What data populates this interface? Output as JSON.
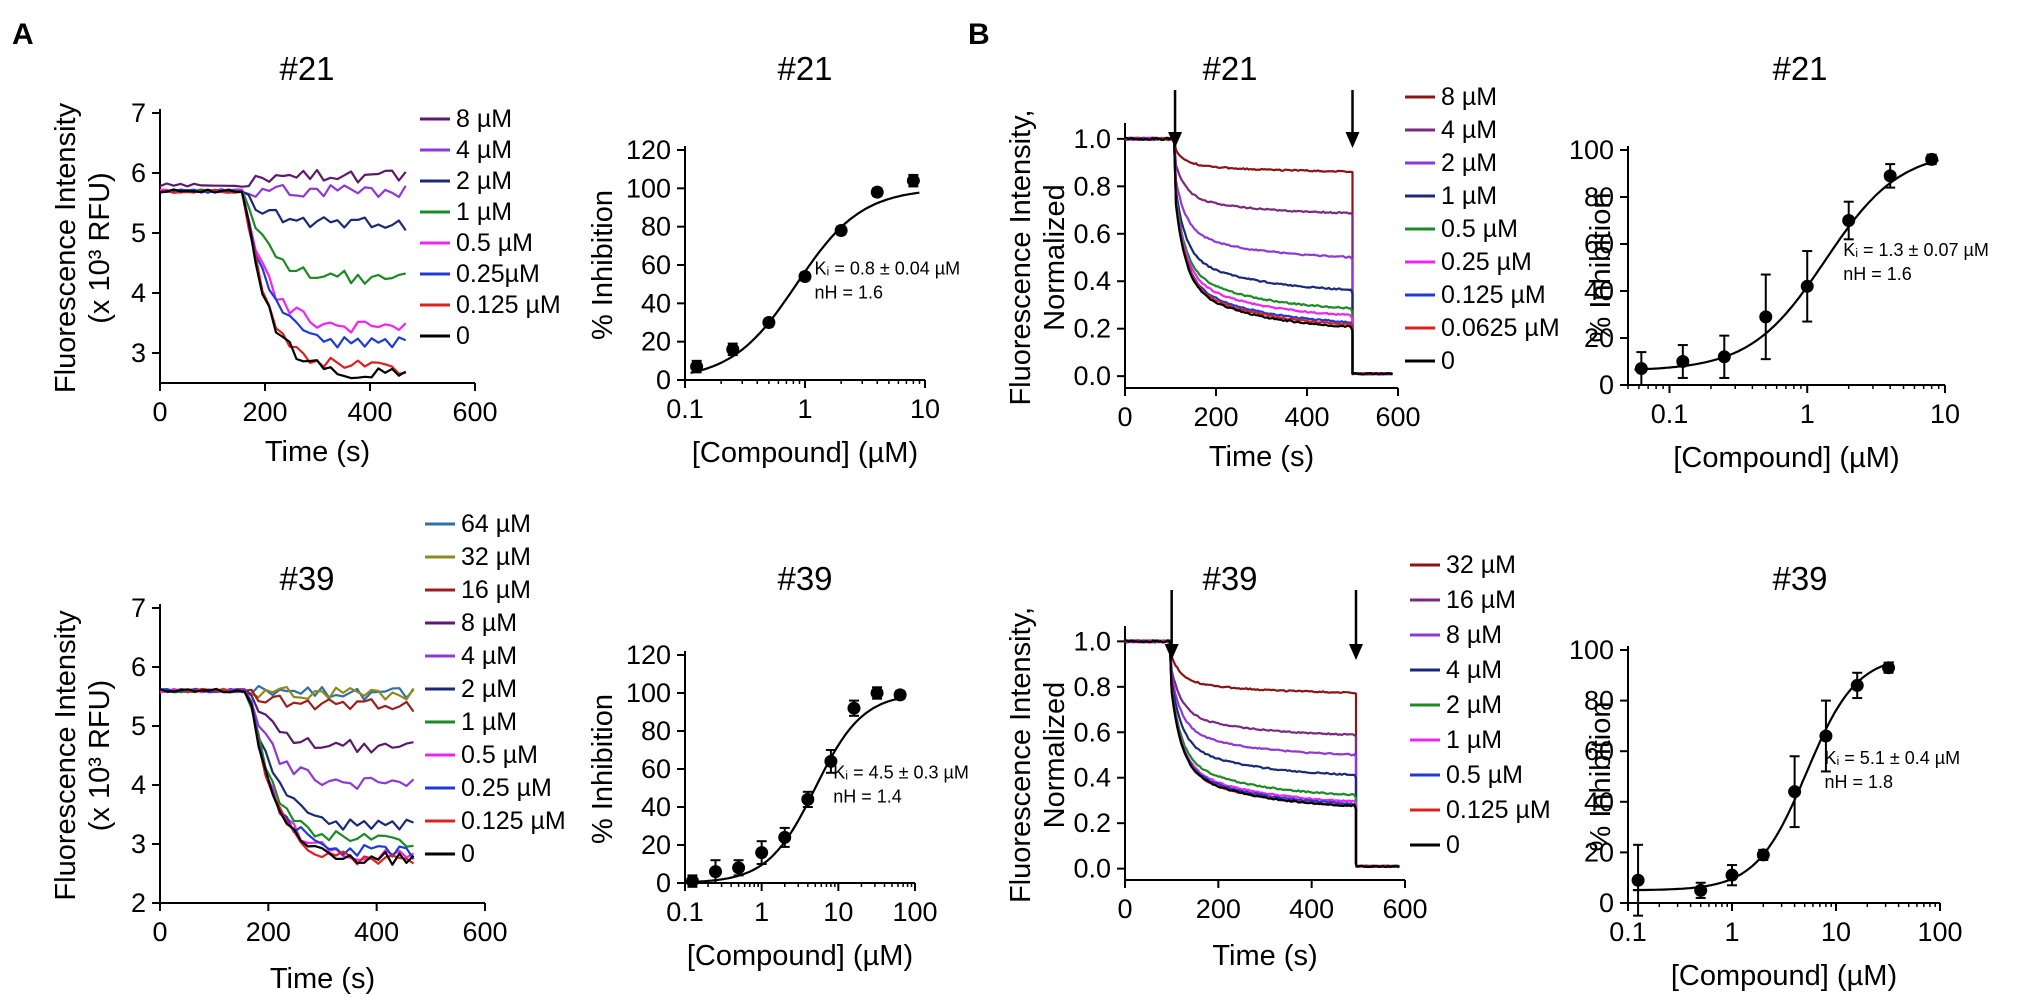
{
  "panels": [
    {
      "letter": "A"
    },
    {
      "letter": "B"
    }
  ],
  "colors": {
    "8uM": "#5c1a6e",
    "4uM": "#8f38d8",
    "2uM": "#1a2a78",
    "1uM": "#1d8a25",
    "0.5uM": "#f024f0",
    "0.25uM": "#1c3bd8",
    "0.125uM": "#e0201e",
    "0": "#000000"
  },
  "chart_data": [
    {
      "id": "A_kin_21",
      "type": "line",
      "title": "#21",
      "xlabel": "Time (s)",
      "ylabel": "Fluorescence Intensity",
      "ylabel2": "(x 10³ RFU)",
      "xlim": [
        0,
        600
      ],
      "ylim": [
        2.5,
        7
      ],
      "xticks": [
        0,
        200,
        400,
        600
      ],
      "yticks": [
        3,
        4,
        5,
        6,
        7
      ],
      "baseline": 5.75,
      "injection_time": 160,
      "x_end": 470,
      "series": [
        {
          "name": "8 µM",
          "color": "#5c1a6e",
          "start": 5.8,
          "plateau": 5.95
        },
        {
          "name": "4 µM",
          "color": "#8f38d8",
          "start": 5.7,
          "plateau": 5.7
        },
        {
          "name": "2 µM",
          "color": "#1a2a78",
          "start": 5.7,
          "plateau": 5.15
        },
        {
          "name": "1 µM",
          "color": "#1d8a25",
          "start": 5.7,
          "plateau": 4.25
        },
        {
          "name": "0.5 µM",
          "color": "#f024f0",
          "start": 5.7,
          "plateau": 3.4
        },
        {
          "name": "0.25µM",
          "color": "#1c3bd8",
          "start": 5.7,
          "plateau": 3.15
        },
        {
          "name": "0.125 µM",
          "color": "#e0201e",
          "start": 5.7,
          "plateau": 2.75
        },
        {
          "name": "0",
          "color": "#000000",
          "start": 5.7,
          "plateau": 2.65
        }
      ]
    },
    {
      "id": "A_dose_21",
      "type": "scatter",
      "title": "#21",
      "xlabel": "[Compound] (µM)",
      "ylabel": "% Inhibition",
      "xscale": "log",
      "xlim": [
        0.1,
        10
      ],
      "ylim": [
        0,
        120
      ],
      "xticks": [
        0.1,
        1,
        10
      ],
      "xticklabels": [
        "0.1",
        "1",
        "10"
      ],
      "yticks": [
        0,
        20,
        40,
        60,
        80,
        100,
        120
      ],
      "x": [
        0.125,
        0.25,
        0.5,
        1,
        2,
        4,
        8
      ],
      "y": [
        7,
        16,
        30,
        54,
        78,
        98,
        104
      ],
      "err": [
        3,
        3,
        2,
        2,
        2,
        2,
        3
      ],
      "fit": {
        "top": 100,
        "ic50": 0.85,
        "nH": 1.6
      },
      "annotation": [
        "Kᵢ = 0.8 ± 0.04 µM",
        "nH = 1.6"
      ]
    },
    {
      "id": "B_kin_21",
      "type": "line",
      "title": "#21",
      "xlabel": "Time (s)",
      "ylabel": "Fluorescence Intensity,",
      "ylabel2": "Normalized",
      "xlim": [
        0,
        600
      ],
      "ylim": [
        -0.05,
        1.05
      ],
      "xticks": [
        0,
        200,
        400,
        600
      ],
      "yticks": [
        0.0,
        0.2,
        0.4,
        0.6,
        0.8,
        1.0
      ],
      "yticklabels": [
        "0.0",
        "0.2",
        "0.4",
        "0.6",
        "0.8",
        "1.0"
      ],
      "injection_time": 110,
      "quench_time": 500,
      "x_end": 590,
      "arrows": [
        110,
        500
      ],
      "series": [
        {
          "name": "8 µM",
          "color": "#8b1515",
          "plateau": 0.86
        },
        {
          "name": "4 µM",
          "color": "#7a2a80",
          "plateau": 0.68
        },
        {
          "name": "2 µM",
          "color": "#8f38d8",
          "plateau": 0.49
        },
        {
          "name": "1 µM",
          "color": "#1a2a78",
          "plateau": 0.35
        },
        {
          "name": "0.5 µM",
          "color": "#1d8a25",
          "plateau": 0.27
        },
        {
          "name": "0.25 µM",
          "color": "#f024f0",
          "plateau": 0.24
        },
        {
          "name": "0.125 µM",
          "color": "#1c3bd8",
          "plateau": 0.21
        },
        {
          "name": "0.0625 µM",
          "color": "#e0201e",
          "plateau": 0.2
        },
        {
          "name": "0",
          "color": "#000000",
          "plateau": 0.19
        }
      ]
    },
    {
      "id": "B_dose_21",
      "type": "scatter",
      "title": "#21",
      "xlabel": "[Compound] (µM)",
      "ylabel": "% Inhibition",
      "xscale": "log",
      "xlim": [
        0.05,
        10
      ],
      "ylim": [
        0,
        100
      ],
      "xticks": [
        0.1,
        1,
        10
      ],
      "xticklabels": [
        "0.1",
        "1",
        "10"
      ],
      "yticks": [
        0,
        20,
        40,
        60,
        80,
        100
      ],
      "x": [
        0.0625,
        0.125,
        0.25,
        0.5,
        1,
        2,
        4,
        8
      ],
      "y": [
        7,
        10,
        12,
        29,
        42,
        70,
        89,
        96
      ],
      "err": [
        7,
        7,
        9,
        18,
        15,
        8,
        5,
        2
      ],
      "fit": {
        "top": 100,
        "ic50": 1.35,
        "nH": 1.6,
        "bottom": 6
      },
      "annotation": [
        "Kᵢ = 1.3 ± 0.07 µM",
        "nH = 1.6"
      ]
    },
    {
      "id": "A_kin_39",
      "type": "line",
      "title": "#39",
      "xlabel": "Time (s)",
      "ylabel": "Fluorescence Intensity",
      "ylabel2": "(x 10³ RFU)",
      "xlim": [
        0,
        600
      ],
      "ylim": [
        2,
        7
      ],
      "xticks": [
        0,
        200,
        400,
        600
      ],
      "yticks": [
        2,
        3,
        4,
        5,
        6,
        7
      ],
      "baseline": 5.65,
      "injection_time": 165,
      "x_end": 480,
      "series": [
        {
          "name": "64 µM",
          "color": "#2f6faa",
          "start": 5.6,
          "plateau": 5.55
        },
        {
          "name": "32 µM",
          "color": "#8e8a1a",
          "start": 5.6,
          "plateau": 5.55
        },
        {
          "name": "16 µM",
          "color": "#9a2020",
          "start": 5.6,
          "plateau": 5.35
        },
        {
          "name": "8 µM",
          "color": "#5c1a6e",
          "start": 5.6,
          "plateau": 4.65
        },
        {
          "name": "4 µM",
          "color": "#8f38d8",
          "start": 5.6,
          "plateau": 4.0
        },
        {
          "name": "2 µM",
          "color": "#1a2a78",
          "start": 5.6,
          "plateau": 3.3
        },
        {
          "name": "1 µM",
          "color": "#1d8a25",
          "start": 5.6,
          "plateau": 3.05
        },
        {
          "name": "0.5 µM",
          "color": "#f024f0",
          "start": 5.6,
          "plateau": 2.8
        },
        {
          "name": "0.25 µM",
          "color": "#1c3bd8",
          "start": 5.6,
          "plateau": 2.85
        },
        {
          "name": "0.125 µM",
          "color": "#e0201e",
          "start": 5.6,
          "plateau": 2.7
        },
        {
          "name": "0",
          "color": "#000000",
          "start": 5.6,
          "plateau": 2.75
        }
      ]
    },
    {
      "id": "A_dose_39",
      "type": "scatter",
      "title": "#39",
      "xlabel": "[Compound] (µM)",
      "ylabel": "% Inhibition",
      "xscale": "log",
      "xlim": [
        0.1,
        100
      ],
      "ylim": [
        0,
        120
      ],
      "xticks": [
        0.1,
        1,
        10,
        100
      ],
      "xticklabels": [
        "0.1",
        "1",
        "10",
        "100"
      ],
      "yticks": [
        0,
        20,
        40,
        60,
        80,
        100,
        120
      ],
      "x": [
        0.125,
        0.25,
        0.5,
        1,
        2,
        4,
        8,
        16,
        32,
        64
      ],
      "y": [
        1,
        6,
        8,
        16,
        24,
        44,
        64,
        92,
        100,
        99
      ],
      "err": [
        3,
        6,
        4,
        6,
        5,
        4,
        6,
        4,
        3,
        2
      ],
      "fit": {
        "top": 100,
        "ic50": 5.0,
        "nH": 1.4
      },
      "annotation": [
        "Kᵢ = 4.5 ± 0.3 µM",
        "nH = 1.4"
      ]
    },
    {
      "id": "B_kin_39",
      "type": "line",
      "title": "#39",
      "xlabel": "Time (s)",
      "ylabel": "Fluorescence Intensity,",
      "ylabel2": "Normalized",
      "xlim": [
        0,
        600
      ],
      "ylim": [
        -0.05,
        1.05
      ],
      "xticks": [
        0,
        200,
        400,
        600
      ],
      "yticks": [
        0.0,
        0.2,
        0.4,
        0.6,
        0.8,
        1.0
      ],
      "yticklabels": [
        "0.0",
        "0.2",
        "0.4",
        "0.6",
        "0.8",
        "1.0"
      ],
      "injection_time": 100,
      "quench_time": 495,
      "x_end": 590,
      "arrows": [
        100,
        495
      ],
      "series": [
        {
          "name": "32 µM",
          "color": "#8b1515",
          "plateau": 0.77
        },
        {
          "name": "16 µM",
          "color": "#7a2a80",
          "plateau": 0.58
        },
        {
          "name": "8 µM",
          "color": "#8f38d8",
          "plateau": 0.49
        },
        {
          "name": "4 µM",
          "color": "#1a2a78",
          "plateau": 0.4
        },
        {
          "name": "2 µM",
          "color": "#1d8a25",
          "plateau": 0.31
        },
        {
          "name": "1 µM",
          "color": "#f024f0",
          "plateau": 0.28
        },
        {
          "name": "0.5 µM",
          "color": "#1c3bd8",
          "plateau": 0.27
        },
        {
          "name": "0.125 µM",
          "color": "#e0201e",
          "plateau": 0.26
        },
        {
          "name": "0",
          "color": "#000000",
          "plateau": 0.26
        }
      ]
    },
    {
      "id": "B_dose_39",
      "type": "scatter",
      "title": "#39",
      "xlabel": "[Compound] (µM)",
      "ylabel": "% Inhibition",
      "xscale": "log",
      "xlim": [
        0.1,
        100
      ],
      "ylim": [
        0,
        100
      ],
      "xticks": [
        0.1,
        1,
        10,
        100
      ],
      "xticklabels": [
        "0.1",
        "1",
        "10",
        "100"
      ],
      "yticks": [
        0,
        20,
        40,
        60,
        80,
        100
      ],
      "x": [
        0.125,
        0.5,
        1,
        2,
        4,
        8,
        16,
        32
      ],
      "y": [
        9,
        5,
        11,
        19,
        44,
        66,
        86,
        93
      ],
      "err": [
        14,
        3,
        4,
        2,
        14,
        14,
        5,
        2
      ],
      "fit": {
        "top": 98,
        "ic50": 5.2,
        "nH": 1.8,
        "bottom": 5
      },
      "annotation": [
        "Kᵢ = 5.1 ± 0.4 µM",
        "nH = 1.8"
      ]
    }
  ]
}
